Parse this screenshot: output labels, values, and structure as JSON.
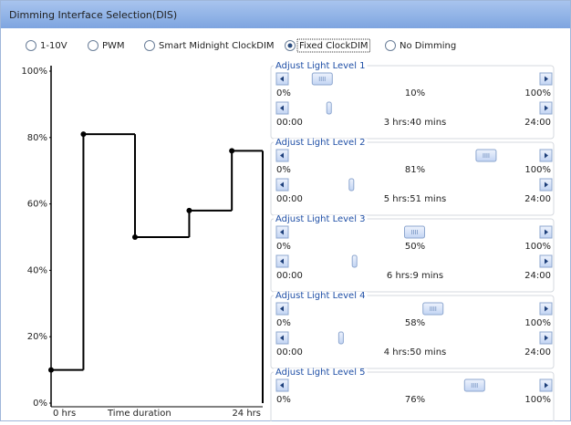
{
  "header": {
    "title": "Dimming Interface Selection(DIS)"
  },
  "options": [
    {
      "label": "1-10V",
      "selected": false
    },
    {
      "label": "PWM",
      "selected": false
    },
    {
      "label": "Smart Midnight ClockDIM",
      "selected": false
    },
    {
      "label": "Fixed ClockDIM",
      "selected": true
    },
    {
      "label": "No Dimming",
      "selected": false
    }
  ],
  "chart": {
    "type": "step",
    "ylim": [
      0,
      100
    ],
    "yticks": [
      {
        "value": 0,
        "label": "0%"
      },
      {
        "value": 20,
        "label": "20%"
      },
      {
        "value": 40,
        "label": "40%"
      },
      {
        "value": 60,
        "label": "60%"
      },
      {
        "value": 80,
        "label": "80%"
      },
      {
        "value": 100,
        "label": "100%"
      }
    ],
    "xlim": [
      0,
      1440
    ],
    "x_start_label": "0 hrs",
    "xlabel": "Time duration",
    "x_end_label": "24 hrs",
    "color": "#000000"
  },
  "panels": [
    {
      "title": "Adjust Light Level 1",
      "level_min": "0%",
      "level": 10,
      "level_label": "10%",
      "level_max": "100%",
      "time_min": "00:00",
      "duration": 220,
      "duration_label": "3 hrs:40 mins",
      "time_max": "24:00"
    },
    {
      "title": "Adjust Light Level 2",
      "level_min": "0%",
      "level": 81,
      "level_label": "81%",
      "level_max": "100%",
      "time_min": "00:00",
      "duration": 351,
      "duration_label": "5 hrs:51 mins",
      "time_max": "24:00"
    },
    {
      "title": "Adjust Light Level 3",
      "level_min": "0%",
      "level": 50,
      "level_label": "50%",
      "level_max": "100%",
      "time_min": "00:00",
      "duration": 369,
      "duration_label": "6 hrs:9 mins",
      "time_max": "24:00"
    },
    {
      "title": "Adjust Light Level 4",
      "level_min": "0%",
      "level": 58,
      "level_label": "58%",
      "level_max": "100%",
      "time_min": "00:00",
      "duration": 290,
      "duration_label": "4 hrs:50 mins",
      "time_max": "24:00"
    },
    {
      "title": "Adjust Light Level 5",
      "level_min": "0%",
      "level": 76,
      "level_label": "76%",
      "level_max": "100%"
    }
  ]
}
